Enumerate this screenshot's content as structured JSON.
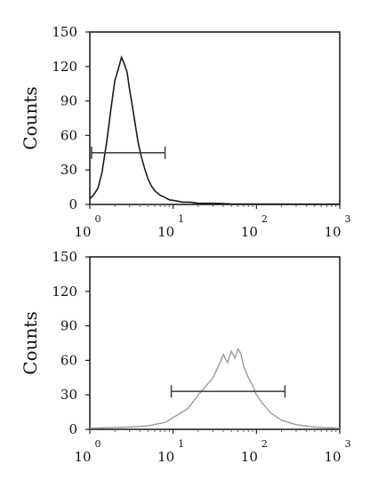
{
  "chart_data": [
    {
      "type": "area",
      "ylabel": "Counts",
      "xscale": "log",
      "xlim": [
        1,
        1000
      ],
      "ylim": [
        0,
        150
      ],
      "x_ticks": [
        {
          "base": "10",
          "exp": "0"
        },
        {
          "base": "10",
          "exp": "1"
        },
        {
          "base": "10",
          "exp": "2"
        },
        {
          "base": "10",
          "exp": "3"
        }
      ],
      "y_ticks": [
        "0",
        "30",
        "60",
        "90",
        "120",
        "150"
      ],
      "series": [
        {
          "color": "#1a1a1a",
          "x": [
            1.0,
            1.1,
            1.25,
            1.4,
            1.6,
            1.8,
            2.0,
            2.2,
            2.4,
            2.6,
            2.8,
            3.0,
            3.2,
            3.5,
            3.8,
            4.2,
            4.6,
            5.0,
            5.5,
            6.0,
            7.0,
            8.0,
            9.0,
            11,
            13,
            16,
            20,
            30,
            50,
            100,
            1000
          ],
          "y": [
            5,
            8,
            14,
            28,
            55,
            84,
            108,
            118,
            128,
            122,
            115,
            100,
            88,
            70,
            54,
            40,
            30,
            22,
            16,
            12,
            8,
            6,
            4,
            3,
            2,
            2,
            1,
            1,
            0.5,
            0.3,
            0.2
          ]
        }
      ],
      "gate": {
        "x_start": 1.05,
        "x_end": 8.0,
        "y": 45
      }
    },
    {
      "type": "area",
      "ylabel": "Counts",
      "xscale": "log",
      "xlim": [
        1,
        1000
      ],
      "ylim": [
        0,
        150
      ],
      "x_ticks": [
        {
          "base": "10",
          "exp": "0"
        },
        {
          "base": "10",
          "exp": "1"
        },
        {
          "base": "10",
          "exp": "2"
        },
        {
          "base": "10",
          "exp": "3"
        }
      ],
      "y_ticks": [
        "0",
        "30",
        "60",
        "90",
        "120",
        "150"
      ],
      "series": [
        {
          "color": "#9a9a9a",
          "x": [
            1.0,
            3.0,
            5.0,
            8.0,
            11,
            15,
            20,
            25,
            30,
            35,
            40,
            45,
            50,
            55,
            60,
            65,
            70,
            80,
            90,
            100,
            120,
            150,
            200,
            300,
            500,
            1000
          ],
          "y": [
            1,
            2,
            3,
            6,
            12,
            18,
            30,
            38,
            45,
            55,
            65,
            58,
            68,
            62,
            70,
            66,
            55,
            45,
            38,
            30,
            22,
            14,
            8,
            4,
            2,
            1
          ]
        }
      ],
      "gate": {
        "x_start": 9.5,
        "x_end": 220,
        "y": 33
      }
    }
  ]
}
